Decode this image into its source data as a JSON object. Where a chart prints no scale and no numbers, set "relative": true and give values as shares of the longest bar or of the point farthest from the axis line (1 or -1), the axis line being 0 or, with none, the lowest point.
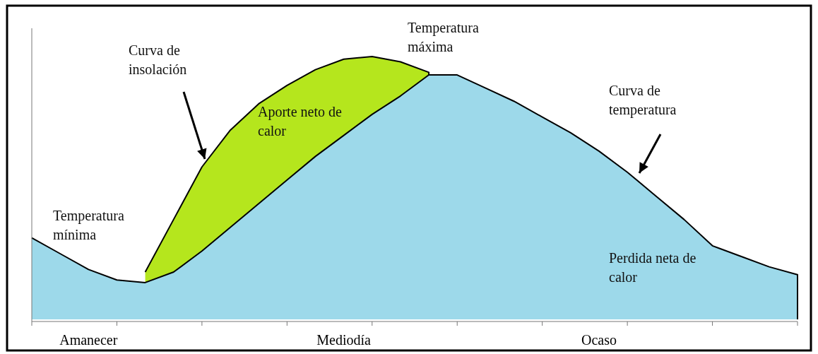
{
  "chart_data": {
    "type": "area",
    "relative": true,
    "categories": [
      null,
      null,
      "Amanecer",
      null,
      null,
      null,
      null,
      null,
      null,
      null,
      null,
      "Mediodía",
      null,
      null,
      null,
      null,
      null,
      null,
      null,
      null,
      "Ocaso",
      null,
      null,
      null,
      null,
      null,
      null,
      null
    ],
    "series": [
      {
        "color": "#b5e61d",
        "values": [
          null,
          null,
          null,
          null,
          0.18,
          0.38,
          0.58,
          0.72,
          0.82,
          0.89,
          0.95,
          0.99,
          1,
          0.98,
          0.94,
          null,
          null,
          null,
          null,
          null,
          null,
          null,
          null,
          null,
          null,
          null,
          null,
          null
        ]
      },
      {
        "color": "#9dd9ea",
        "values": [
          0.31,
          0.25,
          0.19,
          0.15,
          0.14,
          0.18,
          0.26,
          0.35,
          0.44,
          0.53,
          0.62,
          0.7,
          0.78,
          0.85,
          0.93,
          0.93,
          0.88,
          0.83,
          0.77,
          0.71,
          0.64,
          0.56,
          0.47,
          0.38,
          0.28,
          0.24,
          0.2,
          0.17
        ]
      }
    ],
    "annotations": [
      "Curva de\ninsolación",
      "Temperatura\nmínima",
      "Aporte neto de\ncalor",
      "Temperatura\nmáxima",
      "Curva de\ntemperatura",
      "Perdida neta de\ncalor"
    ]
  }
}
